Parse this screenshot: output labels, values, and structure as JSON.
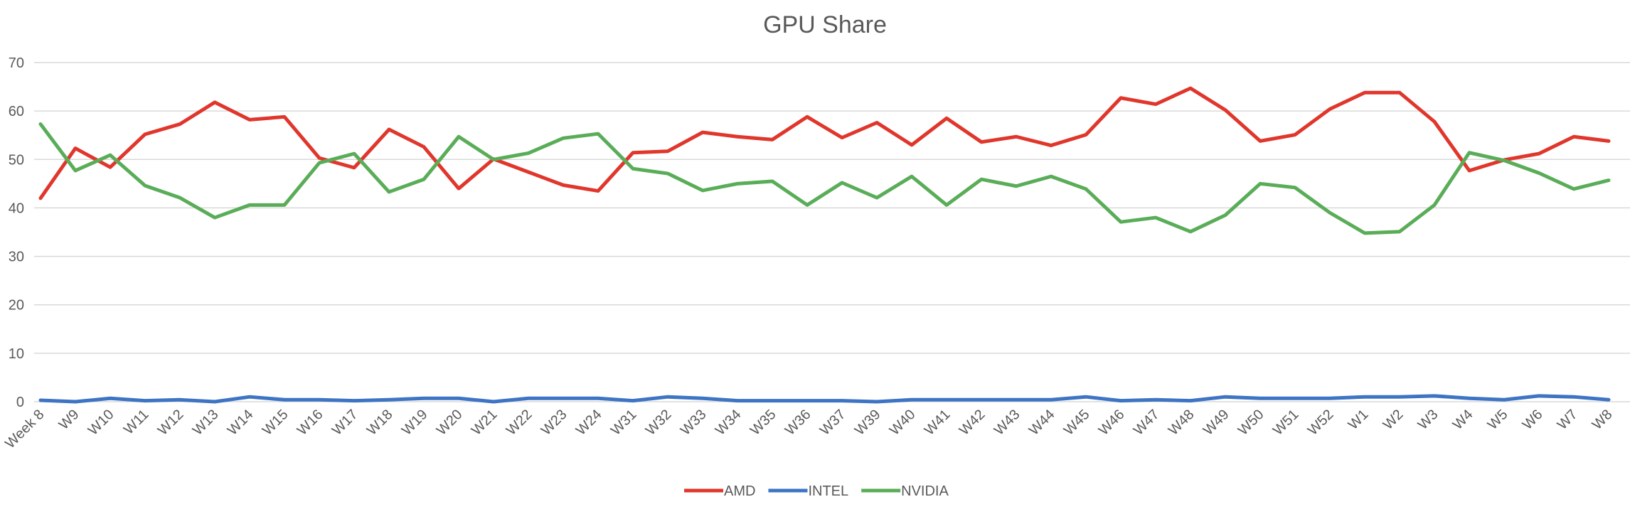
{
  "chart_data": {
    "type": "line",
    "title": "GPU Share",
    "xlabel": "",
    "ylabel": "",
    "ylim": [
      0,
      70
    ],
    "yticks": [
      0,
      10,
      20,
      30,
      40,
      50,
      60,
      70
    ],
    "grid": true,
    "legend": "bottom",
    "categories": [
      "Week 8",
      "W9",
      "W10",
      "W11",
      "W12",
      "W13",
      "W14",
      "W15",
      "W16",
      "W17",
      "W18",
      "W19",
      "W20",
      "W21",
      "W22",
      "W23",
      "W24",
      "W31",
      "W32",
      "W33",
      "W34",
      "W35",
      "W36",
      "W37",
      "W39",
      "W40",
      "W41",
      "W42",
      "W43",
      "W44",
      "W45",
      "W46",
      "W47",
      "W48",
      "W49",
      "W50",
      "W51",
      "W52",
      "W1",
      "W2",
      "W3",
      "W4",
      "W5",
      "W6",
      "W7",
      "W8"
    ],
    "series": [
      {
        "name": "AMD",
        "color": "#e0362c",
        "values": [
          42,
          52.3,
          48.4,
          55.2,
          57.3,
          61.8,
          58.2,
          58.8,
          50.3,
          48.3,
          56.2,
          52.6,
          44,
          50.1,
          47.4,
          44.7,
          43.5,
          51.4,
          51.7,
          55.6,
          54.7,
          54.1,
          58.8,
          54.5,
          57.6,
          53,
          58.5,
          53.6,
          54.7,
          52.9,
          55.1,
          62.7,
          61.4,
          64.7,
          60.2,
          53.8,
          55.1,
          60.4,
          63.8,
          63.8,
          57.8,
          47.7,
          49.9,
          51.2,
          54.7,
          53.8
        ]
      },
      {
        "name": "INTEL",
        "color": "#3d74c3",
        "values": [
          0.3,
          0,
          0.7,
          0.2,
          0.4,
          0,
          1,
          0.4,
          0.4,
          0.2,
          0.4,
          0.7,
          0.7,
          0,
          0.7,
          0.7,
          0.7,
          0.2,
          1,
          0.7,
          0.2,
          0.2,
          0.2,
          0.2,
          0,
          0.4,
          0.4,
          0.4,
          0.4,
          0.4,
          1,
          0.2,
          0.4,
          0.2,
          1,
          0.7,
          0.7,
          0.7,
          1,
          1,
          1.2,
          0.7,
          0.4,
          1.2,
          1,
          0.4
        ]
      },
      {
        "name": "NVIDIA",
        "color": "#5aad58",
        "values": [
          57.3,
          47.7,
          50.9,
          44.6,
          42.1,
          38,
          40.6,
          40.6,
          49.3,
          51.2,
          43.3,
          45.9,
          54.7,
          50,
          51.3,
          54.4,
          55.3,
          48.1,
          47.1,
          43.6,
          45,
          45.5,
          40.6,
          45.2,
          42.1,
          46.5,
          40.6,
          45.9,
          44.5,
          46.5,
          43.9,
          37.1,
          38,
          35.1,
          38.5,
          45,
          44.2,
          39,
          34.8,
          35.1,
          40.6,
          51.4,
          49.8,
          47.2,
          43.9,
          45.7
        ]
      }
    ]
  }
}
